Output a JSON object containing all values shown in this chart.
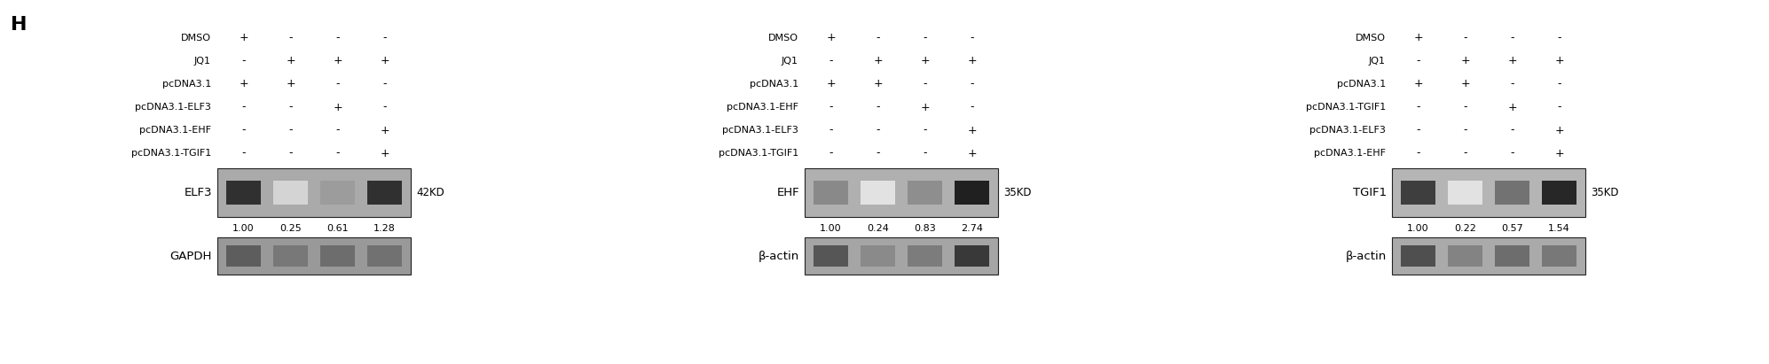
{
  "panel_label": "H",
  "background_color": "#ffffff",
  "text_color": "#000000",
  "fig_width": 19.94,
  "fig_height": 4.11,
  "panels": [
    {
      "id": "left",
      "treatment_labels": [
        "DMSO",
        "JQ1",
        "pcDNA3.1",
        "pcDNA3.1-ELF3",
        "pcDNA3.1-EHF",
        "pcDNA3.1-TGIF1"
      ],
      "lane_signs": [
        [
          "+",
          "-",
          "-",
          "-"
        ],
        [
          "-",
          "+",
          "+",
          "+"
        ],
        [
          "+",
          "+",
          "-",
          "-"
        ],
        [
          "-",
          "-",
          "+",
          "-"
        ],
        [
          "-",
          "-",
          "-",
          "+"
        ],
        [
          "-",
          "-",
          "-",
          "+"
        ]
      ],
      "protein_label": "ELF3",
      "kd_label": "42KD",
      "loading_label": "GAPDH",
      "quantification": [
        "1.00",
        "0.25",
        "0.61",
        "1.28"
      ],
      "band_intensities_protein": [
        0.88,
        0.18,
        0.42,
        0.88
      ],
      "band_intensities_loading": [
        0.72,
        0.6,
        0.65,
        0.63
      ],
      "gel_bg_color": "#aaaaaa",
      "gel_bg_color2": "#999999"
    },
    {
      "id": "middle",
      "treatment_labels": [
        "DMSO",
        "JQ1",
        "pcDNA3.1",
        "pcDNA3.1-EHF",
        "pcDNA3.1-ELF3",
        "pcDNA3.1-TGIF1"
      ],
      "lane_signs": [
        [
          "+",
          "-",
          "-",
          "-"
        ],
        [
          "-",
          "+",
          "+",
          "+"
        ],
        [
          "+",
          "+",
          "-",
          "-"
        ],
        [
          "-",
          "-",
          "+",
          "-"
        ],
        [
          "-",
          "-",
          "-",
          "+"
        ],
        [
          "-",
          "-",
          "-",
          "+"
        ]
      ],
      "protein_label": "EHF",
      "kd_label": "35KD",
      "loading_label": "β-actin",
      "quantification": [
        "1.00",
        "0.24",
        "0.83",
        "2.74"
      ],
      "band_intensities_protein": [
        0.5,
        0.12,
        0.48,
        0.95
      ],
      "band_intensities_loading": [
        0.75,
        0.52,
        0.58,
        0.88
      ],
      "gel_bg_color": "#b0b0b0",
      "gel_bg_color2": "#a5a5a5"
    },
    {
      "id": "right",
      "treatment_labels": [
        "DMSO",
        "JQ1",
        "pcDNA3.1",
        "pcDNA3.1-TGIF1",
        "pcDNA3.1-ELF3",
        "pcDNA3.1-EHF"
      ],
      "lane_signs": [
        [
          "+",
          "-",
          "-",
          "-"
        ],
        [
          "-",
          "+",
          "+",
          "+"
        ],
        [
          "+",
          "+",
          "-",
          "-"
        ],
        [
          "-",
          "-",
          "+",
          "-"
        ],
        [
          "-",
          "-",
          "-",
          "+"
        ],
        [
          "-",
          "-",
          "-",
          "+"
        ]
      ],
      "protein_label": "TGIF1",
      "kd_label": "35KD",
      "loading_label": "β-actin",
      "quantification": [
        "1.00",
        "0.22",
        "0.57",
        "1.54"
      ],
      "band_intensities_protein": [
        0.82,
        0.12,
        0.6,
        0.92
      ],
      "band_intensities_loading": [
        0.78,
        0.55,
        0.65,
        0.6
      ],
      "gel_bg_color": "#b5b5b5",
      "gel_bg_color2": "#aaaaaa"
    }
  ]
}
